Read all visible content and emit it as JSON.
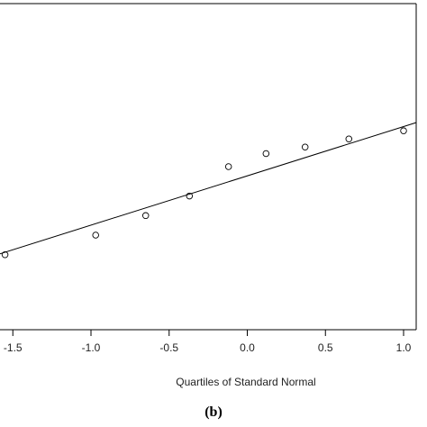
{
  "chart_data": {
    "type": "scatter",
    "title": "",
    "xlabel": "Quartiles of Standard Normal",
    "ylabel": "",
    "panel_label": "(b)",
    "x_ticks": [
      -1.5,
      -1.0,
      -0.5,
      0.0,
      0.5,
      1.0
    ],
    "x_tick_labels": [
      "-1.5",
      "-1.0",
      "-0.5",
      "0.0",
      "0.5",
      "1.0"
    ],
    "xlim": [
      -1.6,
      1.08
    ],
    "ylim": [
      0,
      1
    ],
    "grid": false,
    "legend": "none",
    "series": [
      {
        "marker": "open-circle",
        "x": [
          -1.55,
          -0.97,
          -0.65,
          -0.37,
          -0.12,
          0.12,
          0.37,
          0.65,
          1.0
        ],
        "y": [
          0.23,
          0.29,
          0.35,
          0.41,
          0.5,
          0.54,
          0.56,
          0.585,
          0.61
        ]
      }
    ],
    "reference_line": {
      "x": [
        -1.6,
        1.08
      ],
      "y": [
        0.23,
        0.635
      ]
    }
  }
}
